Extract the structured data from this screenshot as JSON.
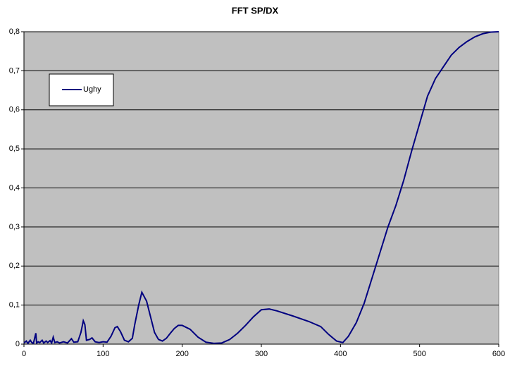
{
  "chart_data": {
    "type": "line",
    "title": "FFT SP/DX",
    "x": [
      0,
      3,
      5,
      8,
      10,
      12,
      15,
      16,
      18,
      20,
      23,
      25,
      28,
      30,
      33,
      35,
      37,
      39,
      42,
      45,
      50,
      55,
      60,
      63,
      68,
      72,
      75,
      77,
      79,
      83,
      86,
      90,
      95,
      100,
      105,
      110,
      115,
      118,
      122,
      127,
      132,
      137,
      140,
      145,
      149,
      155,
      160,
      165,
      170,
      175,
      180,
      185,
      190,
      195,
      200,
      210,
      220,
      230,
      240,
      250,
      260,
      270,
      280,
      290,
      300,
      310,
      320,
      340,
      360,
      375,
      385,
      395,
      403,
      410,
      420,
      430,
      440,
      450,
      460,
      470,
      480,
      490,
      500,
      510,
      520,
      530,
      540,
      550,
      560,
      570,
      580,
      590,
      600
    ],
    "series": [
      {
        "name": "Ughy",
        "color": "#000080",
        "values": [
          0.003,
          0.008,
          0.002,
          0.01,
          0.004,
          0.002,
          0.028,
          0.003,
          0.006,
          0.004,
          0.01,
          0.003,
          0.008,
          0.004,
          0.009,
          0.003,
          0.018,
          0.004,
          0.006,
          0.003,
          0.006,
          0.003,
          0.014,
          0.005,
          0.006,
          0.03,
          0.06,
          0.05,
          0.01,
          0.012,
          0.016,
          0.006,
          0.004,
          0.006,
          0.005,
          0.02,
          0.042,
          0.045,
          0.032,
          0.01,
          0.006,
          0.015,
          0.05,
          0.1,
          0.133,
          0.11,
          0.07,
          0.03,
          0.012,
          0.008,
          0.015,
          0.028,
          0.04,
          0.048,
          0.048,
          0.038,
          0.018,
          0.005,
          0.002,
          0.003,
          0.012,
          0.028,
          0.048,
          0.07,
          0.088,
          0.09,
          0.085,
          0.072,
          0.058,
          0.045,
          0.025,
          0.008,
          0.004,
          0.02,
          0.055,
          0.105,
          0.17,
          0.235,
          0.3,
          0.355,
          0.42,
          0.495,
          0.565,
          0.635,
          0.68,
          0.71,
          0.74,
          0.76,
          0.775,
          0.787,
          0.795,
          0.799,
          0.8
        ]
      }
    ],
    "xlim": [
      0,
      600
    ],
    "xticks": [
      0,
      100,
      200,
      300,
      400,
      500,
      600
    ],
    "ylim": [
      0,
      0.8
    ],
    "yticks": [
      0,
      {
        "value": 0.1,
        "label": "0,1"
      },
      {
        "value": 0.2,
        "label": "0,2"
      },
      {
        "value": 0.3,
        "label": "0,3"
      },
      {
        "value": 0.4,
        "label": "0,4"
      },
      {
        "value": 0.5,
        "label": "0,5"
      },
      {
        "value": 0.6,
        "label": "0,6"
      },
      {
        "value": 0.7,
        "label": "0,7"
      },
      {
        "value": 0.8,
        "label": "0,8"
      }
    ],
    "grid": true,
    "background": "#c0c0c0",
    "legend": "upper-left"
  }
}
